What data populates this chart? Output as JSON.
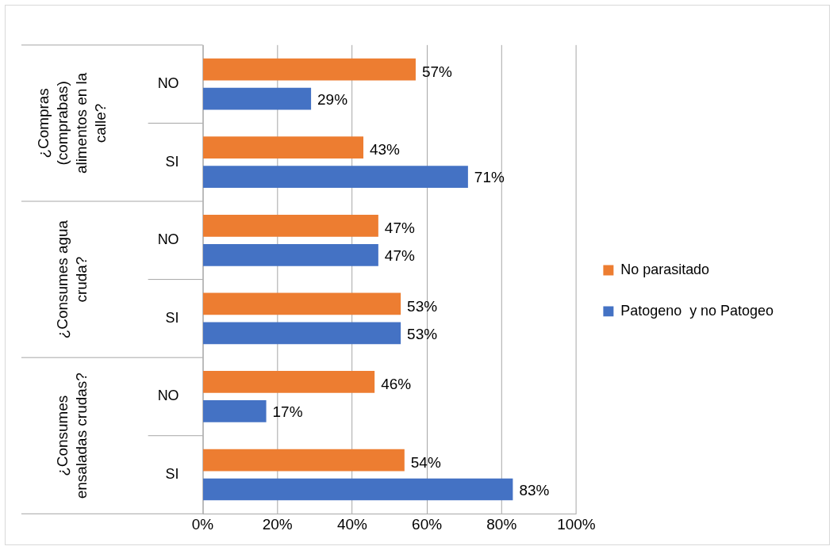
{
  "chart_data": {
    "type": "bar",
    "orientation": "horizontal",
    "categories": [
      "NO",
      "SI",
      "NO",
      "SI",
      "NO",
      "SI"
    ],
    "annotations": [
      "¿Compras (comprabas) alimentos en la calle?",
      "¿Consumes agua cruda?",
      "¿Consumes ensaladas crudas?"
    ],
    "series": [
      {
        "name": "No parasitado",
        "color": "#ed7d31",
        "values": [
          57,
          43,
          47,
          53,
          46,
          54
        ],
        "value_labels": [
          "57%",
          "43%",
          "47%",
          "53%",
          "46%",
          "54%"
        ]
      },
      {
        "name": "Patogeno  y no Patogeo",
        "color": "#4472c4",
        "values": [
          29,
          71,
          47,
          53,
          17,
          83
        ],
        "value_labels": [
          "29%",
          "71%",
          "47%",
          "53%",
          "17%",
          "83%"
        ]
      }
    ],
    "xlim": [
      0,
      100
    ],
    "xticks": [
      {
        "value": 0,
        "label": "0%"
      },
      {
        "value": 20,
        "label": "20%"
      },
      {
        "value": 40,
        "label": "40%"
      },
      {
        "value": 60,
        "label": "60%"
      },
      {
        "value": 80,
        "label": "80%"
      },
      {
        "value": 100,
        "label": "100%"
      }
    ],
    "grid": "x",
    "legend": "right"
  }
}
